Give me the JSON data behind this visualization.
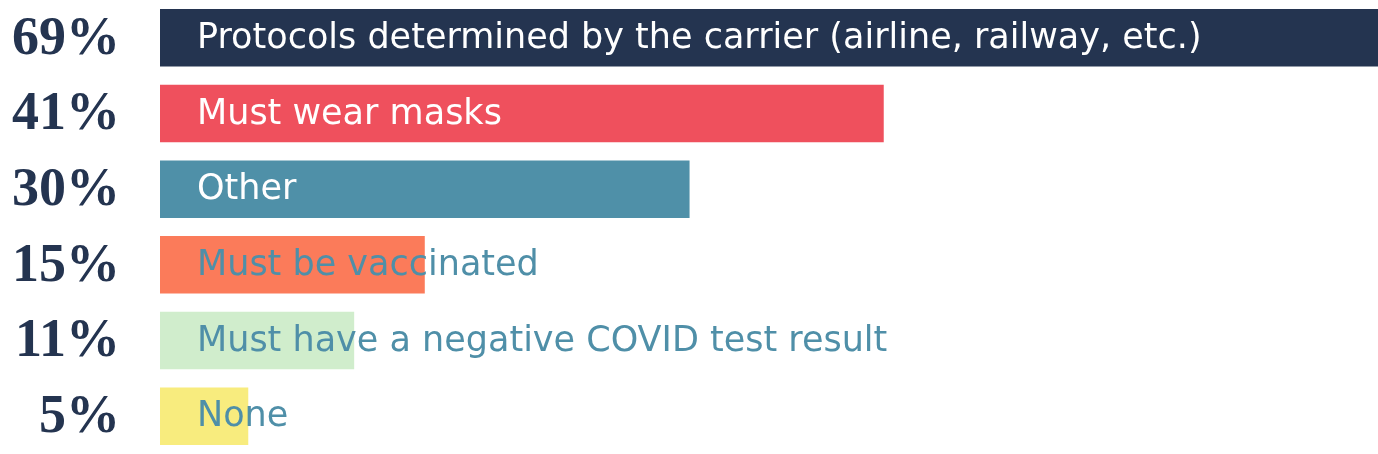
{
  "chart_data": {
    "type": "bar",
    "orientation": "horizontal",
    "tick_labels": "y",
    "categories": [
      "Protocols determined by the carrier (airline, railway, etc.)",
      "Must wear masks",
      "Other",
      "Must be vaccinated",
      "Must have a negative COVID test result",
      "None"
    ],
    "values": [
      69,
      41,
      30,
      15,
      11,
      5
    ],
    "colors": [
      "#243450",
      "#ef505d",
      "#4f90a8",
      "#fb7b5a",
      "#d0edcc",
      "#f8ec7e"
    ],
    "value_labels": [
      "69%",
      "41%",
      "30%",
      "15%",
      "11%",
      "5%"
    ]
  }
}
